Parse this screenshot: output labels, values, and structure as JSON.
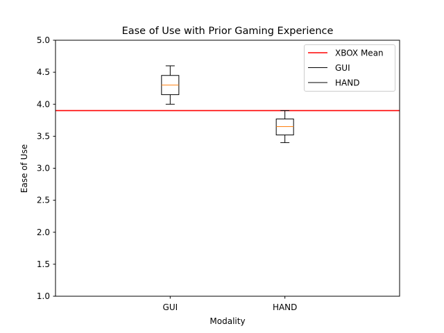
{
  "chart_data": {
    "type": "box",
    "title": "Ease of Use with Prior Gaming Experience",
    "xlabel": "Modality",
    "ylabel": "Ease of Use",
    "categories": [
      "GUI",
      "HAND"
    ],
    "boxes": [
      {
        "name": "GUI",
        "whisker_low": 4.0,
        "q1": 4.15,
        "median": 4.3,
        "q3": 4.45,
        "whisker_high": 4.6
      },
      {
        "name": "HAND",
        "whisker_low": 3.4,
        "q1": 3.52,
        "median": 3.65,
        "q3": 3.77,
        "whisker_high": 3.9
      }
    ],
    "reference_line": {
      "name": "XBOX Mean",
      "value": 3.9,
      "color": "#ff0000"
    },
    "ylim": [
      1.0,
      5.0
    ],
    "xlim": [
      0.0,
      3.0
    ],
    "yticks": [
      "1.0",
      "1.5",
      "2.0",
      "2.5",
      "3.0",
      "3.5",
      "4.0",
      "4.5",
      "5.0"
    ],
    "legend": {
      "placement": "upper right",
      "entries": [
        {
          "label": "XBOX Mean",
          "color": "#ff0000"
        },
        {
          "label": "GUI",
          "color": "#000000"
        },
        {
          "label": "HAND",
          "color": "#000000"
        }
      ]
    },
    "median_color": "#ff7f0e",
    "grid": false
  }
}
